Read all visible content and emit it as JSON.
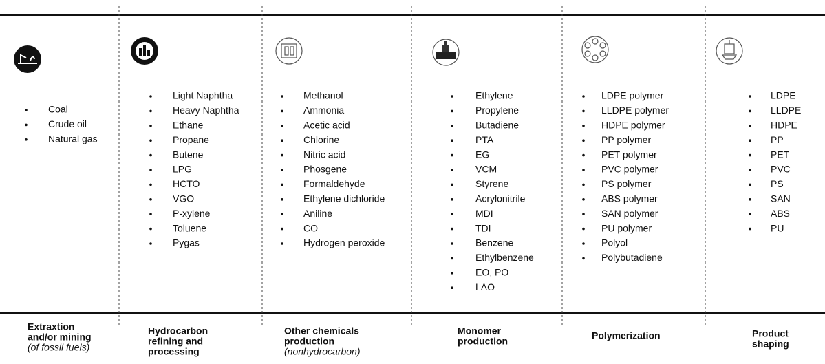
{
  "columns": [
    {
      "items": [
        "Coal",
        "Crude oil",
        "Natural gas"
      ],
      "title_lines": [
        "Extraxtion",
        "and/or mining"
      ],
      "note": "(of fossil fuels)"
    },
    {
      "items": [
        "Light Naphtha",
        "Heavy Naphtha",
        "Ethane",
        "Propane",
        "Butene",
        "LPG",
        "HCTO",
        "VGO",
        "P-xylene",
        "Toluene",
        "Pygas"
      ],
      "title_lines": [
        "Hydrocarbon",
        "refining and",
        "processing"
      ]
    },
    {
      "items": [
        "Methanol",
        "Ammonia",
        "Acetic acid",
        "Chlorine",
        "Nitric acid",
        "Phosgene",
        "Formaldehyde",
        "Ethylene dichloride",
        "Aniline",
        "CO",
        "Hydrogen peroxide"
      ],
      "title_lines": [
        "Other chemicals",
        "production"
      ],
      "note": "(nonhydrocarbon)"
    },
    {
      "items": [
        "Ethylene",
        "Propylene",
        "Butadiene",
        "PTA",
        "EG",
        "VCM",
        "Styrene",
        "Acrylonitrile",
        "MDI",
        "TDI",
        "Benzene",
        "Ethylbenzene",
        "EO, PO",
        "LAO"
      ],
      "title_lines": [
        "Monomer",
        "production"
      ]
    },
    {
      "items": [
        "LDPE polymer",
        "LLDPE polymer",
        "HDPE polymer",
        "PP polymer",
        "PET polymer",
        "PVC polymer",
        "PS polymer",
        "ABS polymer",
        "SAN polymer",
        "PU polymer",
        "Polyol",
        "Polybutadiene"
      ],
      "title_lines": [
        "Polymerization"
      ]
    },
    {
      "items": [
        "LDPE",
        "LLDPE",
        "HDPE",
        "PP",
        "PET",
        "PVC",
        "PS",
        "SAN",
        "ABS",
        "PU"
      ],
      "title_lines": [
        "Product",
        "shaping"
      ]
    }
  ]
}
